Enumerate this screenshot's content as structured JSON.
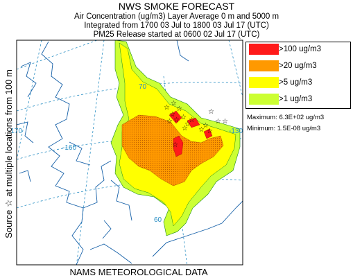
{
  "header": {
    "title": "NWS SMOKE FORECAST",
    "line1": "Air Concentration (ug/m3) Layer Average    0 m and  5000 m",
    "line2": "Integrated from 1700 03 Jul to 1800 03 Jul 17 (UTC)",
    "line3": "PM25 Release started at 0600 02 Jul 17 (UTC)"
  },
  "side_label": "Source ☆  at multiple locations     from    100 m",
  "bottom_label": "NAMS METEOROLOGICAL DATA",
  "legend": {
    "items": [
      {
        "label": ">100 ug/m3",
        "color": "#ff1a1a"
      },
      {
        "label": ">20 ug/m3",
        "color": "#ff9900"
      },
      {
        "label": ">5 ug/m3",
        "color": "#ffff00"
      },
      {
        "label": ">1 ug/m3",
        "color": "#ccff33"
      }
    ],
    "maximum": "Maximum: 6.3E+02 ug/m3",
    "minimum": "Minimum: 1.5E-08 ug/m3"
  },
  "map_labels": {
    "lon_170": "-170",
    "lon_160": "-160",
    "lon_130": "-130",
    "lat_70": "70",
    "lat_60": "60"
  },
  "colors": {
    "coast": "#1560a8",
    "grid": "#2a8fc4",
    "contour_outline": "#1a8a1a"
  }
}
